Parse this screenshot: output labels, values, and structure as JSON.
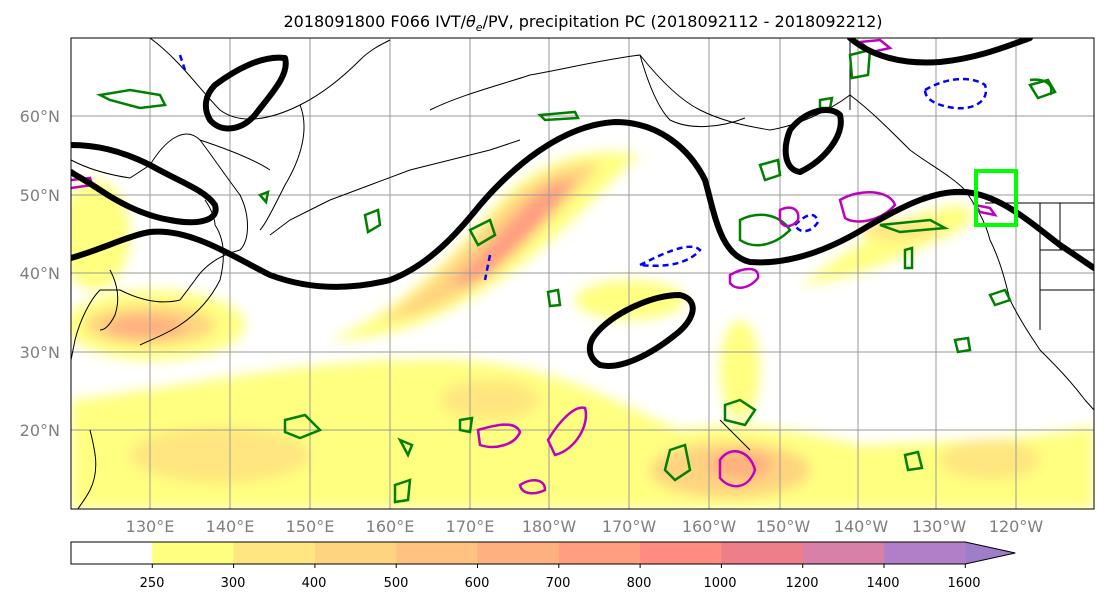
{
  "title": {
    "prefix": "2018091800 F066 IVT/",
    "theta_symbol": "θ",
    "theta_sub": "e",
    "suffix": "/PV, precipitation PC (2018092112 - 2018092212)"
  },
  "map": {
    "lat_labels": [
      "60°N",
      "50°N",
      "40°N",
      "30°N",
      "20°N"
    ],
    "lon_labels": [
      "130°E",
      "140°E",
      "150°E",
      "160°E",
      "170°E",
      "180°W",
      "170°W",
      "160°W",
      "150°W",
      "140°W",
      "130°W",
      "120°W"
    ],
    "colors": {
      "pv_contour": "#000000",
      "theta_e_positive": "#008000",
      "theta_e_negative": "#0000ff",
      "pv_anomaly": "#bf00bf",
      "target_box": "#00ff00"
    }
  },
  "colorbar": {
    "levels": [
      "250",
      "300",
      "400",
      "500",
      "600",
      "700",
      "800",
      "1000",
      "1200",
      "1400",
      "1600"
    ],
    "colors": [
      "#ffffff",
      "#ffff80",
      "#ffe680",
      "#ffd480",
      "#ffc280",
      "#ffb080",
      "#ff9f80",
      "#ff8c80",
      "#ee7f8a",
      "#d880a8",
      "#b07fc7",
      "#a07dc8"
    ],
    "extend": "max"
  }
}
